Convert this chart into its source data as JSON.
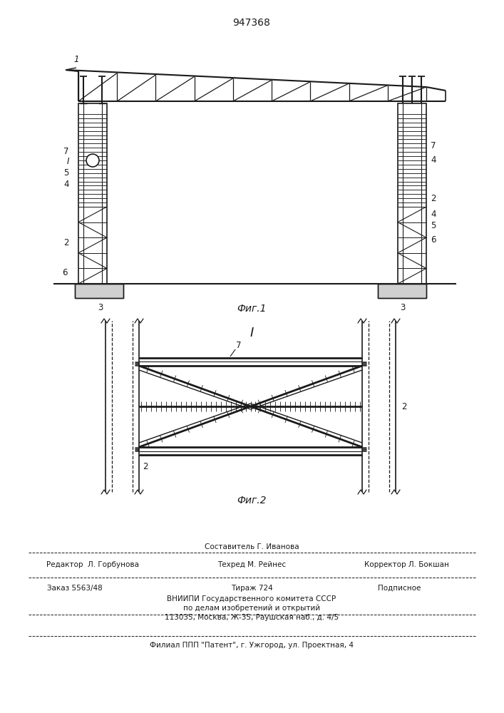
{
  "patent_number": "947368",
  "fig1_caption": "Фиг.1",
  "fig2_caption": "Фиг.2",
  "section_label": "I",
  "line_color": "#1a1a1a",
  "footer_col1_line1": "Редактор  Л. Горбунова",
  "footer_col2_line1": "Составитель Г. Иванова",
  "footer_col2_line2": "Техред М. Рейнес",
  "footer_col3_line1": "Корректор Л. Бокшан",
  "footer_order": "Заказ 5563/48",
  "footer_tirage": "Тираж 724",
  "footer_podpisnoe": "Подписное",
  "footer_vniipи": "ВНИИПИ Государственного комитета СССР",
  "footer_po_delam": "по делам изобретений и открытий",
  "footer_address": "113035, Москва, Ж-35, Раушская наб., д. 4/5",
  "footer_filial": "Филиал ППП \"Патент\", г. Ужгород, ул. Проектная, 4"
}
